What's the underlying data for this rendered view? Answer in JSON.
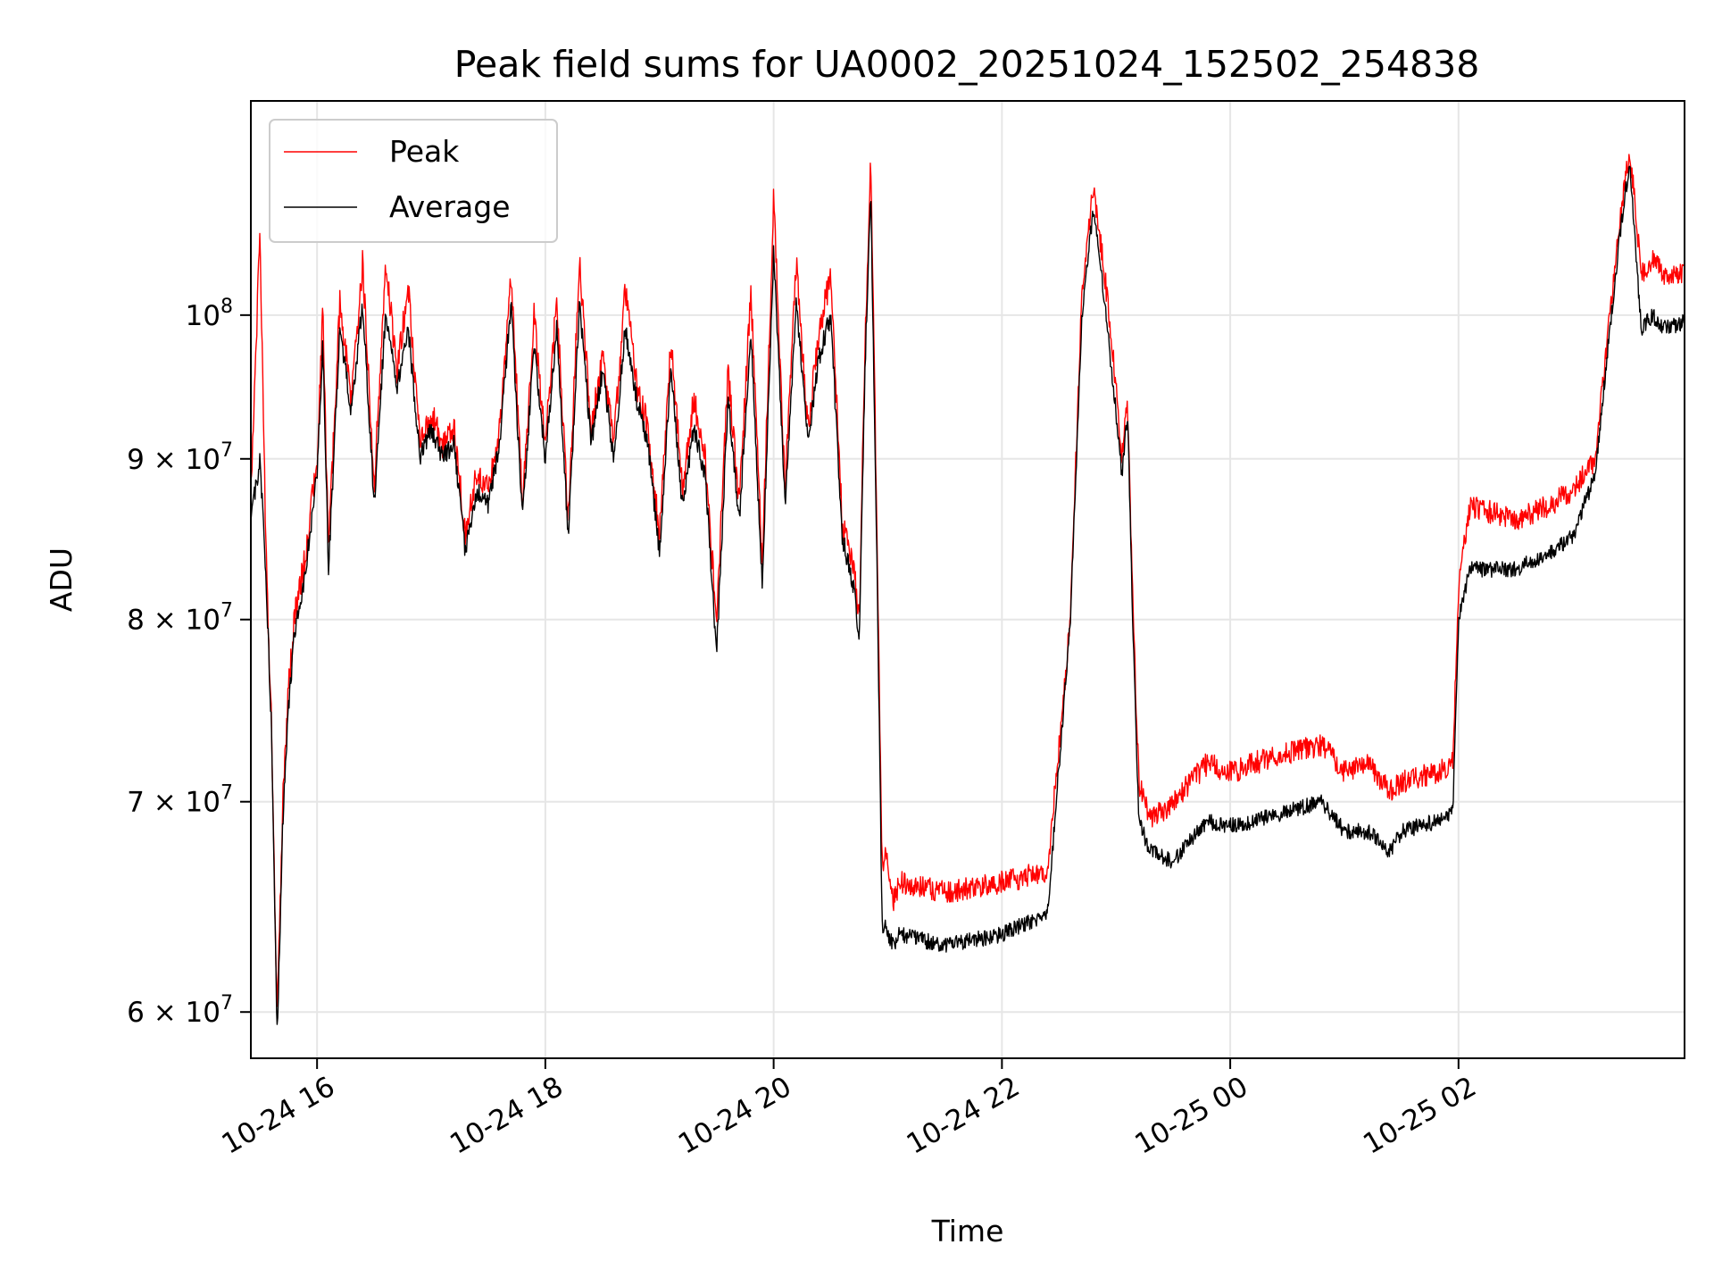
{
  "chart_data": {
    "type": "line",
    "title": "Peak field sums for UA0002_20251024_152502_254838",
    "xlabel": "Time",
    "ylabel": "ADU",
    "x_unit": "hours since 10-24 00:00",
    "xlim": [
      15.42,
      27.98
    ],
    "ylim": [
      58000000,
      117000000
    ],
    "y_scale": "log",
    "grid": true,
    "legend_position": "upper-left",
    "x_ticks": [
      {
        "value": 16,
        "label": "10-24 16"
      },
      {
        "value": 18,
        "label": "10-24 18"
      },
      {
        "value": 20,
        "label": "10-24 20"
      },
      {
        "value": 22,
        "label": "10-24 22"
      },
      {
        "value": 24,
        "label": "10-25 00"
      },
      {
        "value": 26,
        "label": "10-25 02"
      }
    ],
    "y_ticks": [
      {
        "value": 60000000,
        "mantissa": "6",
        "base": "10",
        "exp": "7"
      },
      {
        "value": 70000000,
        "mantissa": "7",
        "base": "10",
        "exp": "7"
      },
      {
        "value": 80000000,
        "mantissa": "8",
        "base": "10",
        "exp": "7"
      },
      {
        "value": 90000000,
        "mantissa": "9",
        "base": "10",
        "exp": "7"
      },
      {
        "value": 100000000,
        "mantissa": "",
        "base": "10",
        "exp": "8"
      }
    ],
    "series": [
      {
        "name": "Peak",
        "color": "#ff0000",
        "x": [
          15.42,
          15.5,
          15.55,
          15.6,
          15.65,
          15.7,
          15.75,
          15.8,
          15.9,
          16.0,
          16.05,
          16.1,
          16.2,
          16.3,
          16.4,
          16.5,
          16.6,
          16.7,
          16.8,
          16.9,
          17.0,
          17.1,
          17.2,
          17.3,
          17.4,
          17.5,
          17.6,
          17.7,
          17.8,
          17.9,
          18.0,
          18.1,
          18.2,
          18.3,
          18.4,
          18.5,
          18.6,
          18.7,
          18.8,
          18.9,
          19.0,
          19.1,
          19.2,
          19.3,
          19.4,
          19.5,
          19.6,
          19.7,
          19.8,
          19.9,
          20.0,
          20.1,
          20.2,
          20.3,
          20.4,
          20.5,
          20.6,
          20.7,
          20.75,
          20.8,
          20.85,
          20.9,
          20.95,
          21.0,
          21.05,
          21.1,
          21.5,
          22.0,
          22.4,
          22.6,
          22.7,
          22.8,
          22.9,
          23.0,
          23.05,
          23.1,
          23.15,
          23.2,
          23.3,
          23.5,
          23.8,
          24.0,
          24.2,
          24.5,
          24.8,
          25.0,
          25.2,
          25.4,
          25.5,
          25.8,
          25.95,
          26.0,
          26.1,
          26.5,
          26.8,
          27.0,
          27.2,
          27.3,
          27.4,
          27.5,
          27.6,
          27.7,
          27.8,
          27.98
        ],
        "y": [
          88000000,
          106000000,
          85000000,
          74000000,
          60000000,
          70000000,
          76000000,
          80000000,
          84000000,
          90000000,
          100000000,
          84000000,
          101000000,
          94000000,
          104000000,
          88000000,
          104000000,
          96000000,
          102000000,
          91000000,
          93000000,
          91000000,
          92000000,
          85000000,
          89000000,
          88000000,
          92000000,
          103000000,
          87000000,
          100000000,
          91000000,
          101000000,
          86000000,
          104000000,
          92000000,
          97000000,
          91000000,
          102000000,
          95000000,
          92000000,
          85000000,
          98000000,
          88000000,
          94000000,
          90000000,
          80000000,
          96000000,
          87000000,
          102000000,
          83000000,
          109000000,
          88000000,
          104000000,
          92000000,
          99000000,
          103000000,
          86000000,
          83000000,
          80000000,
          98000000,
          112000000,
          88000000,
          67000000,
          67000000,
          65000000,
          66000000,
          65500000,
          66000000,
          66500000,
          80000000,
          102000000,
          110000000,
          103000000,
          95000000,
          90000000,
          94000000,
          80000000,
          71000000,
          69000000,
          70000000,
          72000000,
          71500000,
          72000000,
          72500000,
          73000000,
          71500000,
          72000000,
          70500000,
          71000000,
          71500000,
          72000000,
          82000000,
          87000000,
          86000000,
          87000000,
          88000000,
          90000000,
          98000000,
          106000000,
          113000000,
          103000000,
          104000000,
          103000000,
          103000000
        ]
      },
      {
        "name": "Average",
        "color": "#000000",
        "x": [
          15.42,
          15.5,
          15.55,
          15.6,
          15.65,
          15.7,
          15.75,
          15.8,
          15.9,
          16.0,
          16.05,
          16.1,
          16.2,
          16.3,
          16.4,
          16.5,
          16.6,
          16.7,
          16.8,
          16.9,
          17.0,
          17.1,
          17.2,
          17.3,
          17.4,
          17.5,
          17.6,
          17.7,
          17.8,
          17.9,
          18.0,
          18.1,
          18.2,
          18.3,
          18.4,
          18.5,
          18.6,
          18.7,
          18.8,
          18.9,
          19.0,
          19.1,
          19.2,
          19.3,
          19.4,
          19.5,
          19.6,
          19.7,
          19.8,
          19.9,
          20.0,
          20.1,
          20.2,
          20.3,
          20.4,
          20.5,
          20.6,
          20.7,
          20.75,
          20.8,
          20.85,
          20.9,
          20.95,
          21.0,
          21.05,
          21.1,
          21.5,
          22.0,
          22.4,
          22.6,
          22.7,
          22.8,
          22.9,
          23.0,
          23.05,
          23.1,
          23.15,
          23.2,
          23.3,
          23.5,
          23.8,
          24.0,
          24.2,
          24.5,
          24.8,
          25.0,
          25.2,
          25.4,
          25.5,
          25.8,
          25.95,
          26.0,
          26.1,
          26.5,
          26.8,
          27.0,
          27.2,
          27.3,
          27.4,
          27.5,
          27.6,
          27.7,
          27.8,
          27.98
        ],
        "y": [
          86000000,
          90000000,
          83000000,
          74000000,
          59000000,
          69000000,
          75000000,
          79000000,
          83000000,
          89000000,
          98000000,
          83000000,
          99000000,
          93000000,
          101000000,
          87000000,
          100000000,
          95000000,
          99000000,
          90000000,
          92000000,
          90000000,
          91000000,
          84000000,
          88000000,
          87000000,
          91000000,
          101000000,
          86000000,
          98000000,
          90000000,
          99000000,
          85000000,
          101000000,
          91000000,
          96000000,
          90000000,
          99000000,
          94000000,
          91000000,
          84000000,
          96000000,
          87000000,
          92000000,
          89000000,
          78000000,
          94000000,
          86000000,
          99000000,
          82000000,
          105000000,
          87000000,
          101000000,
          91000000,
          97000000,
          100000000,
          85000000,
          82000000,
          79000000,
          96000000,
          110000000,
          86000000,
          64000000,
          63500000,
          63000000,
          63500000,
          63000000,
          63500000,
          64500000,
          80000000,
          100000000,
          108000000,
          101000000,
          93000000,
          89000000,
          93000000,
          79000000,
          69000000,
          67500000,
          67000000,
          69000000,
          68800000,
          69000000,
          69500000,
          70000000,
          68500000,
          68500000,
          67500000,
          68500000,
          69000000,
          69500000,
          80000000,
          83000000,
          83000000,
          84000000,
          85000000,
          89000000,
          97000000,
          105000000,
          112000000,
          99000000,
          100000000,
          99000000,
          99500000
        ]
      }
    ]
  }
}
